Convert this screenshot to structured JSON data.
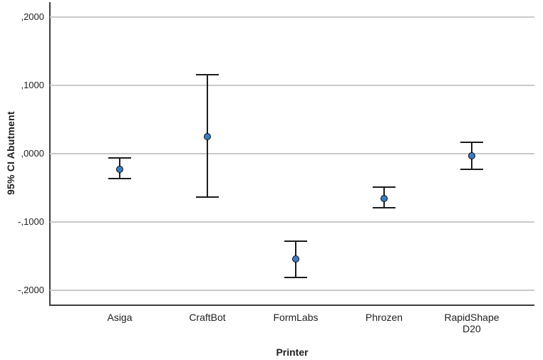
{
  "colors": {
    "point_fill": "#3A7CBF",
    "point_border": "#0a0a0a",
    "error_bar": "#1c1c1c",
    "gridline": "#c9c9c9",
    "axis_line": "#3d3d3d",
    "text": "#1f1f1f",
    "background": "#ffffff"
  },
  "chart_data": {
    "type": "errorbar",
    "title": "",
    "xlabel": "Printer",
    "ylabel": "95% CI Abutment",
    "categories": [
      "Asiga",
      "CraftBot",
      "FormLabs",
      "Phrozen",
      "RapidShape D20"
    ],
    "series": [
      {
        "name": "95% CI Abutment",
        "means": [
          -0.023,
          0.025,
          -0.155,
          -0.066,
          -0.004
        ],
        "ci_low": [
          -0.036,
          -0.064,
          -0.181,
          -0.079,
          -0.023
        ],
        "ci_high": [
          -0.006,
          0.116,
          -0.128,
          -0.049,
          0.017
        ]
      }
    ],
    "y_ticks": [
      {
        "label": ",2000",
        "value": 0.2
      },
      {
        "label": ",1000",
        "value": 0.1
      },
      {
        "label": ",0000",
        "value": 0.0
      },
      {
        "label": "-,1000",
        "value": -0.1
      },
      {
        "label": "-,2000",
        "value": -0.2
      }
    ],
    "ylim": [
      -0.221,
      0.222
    ],
    "grid": "horizontal",
    "legend": "none",
    "marker": "circle"
  }
}
